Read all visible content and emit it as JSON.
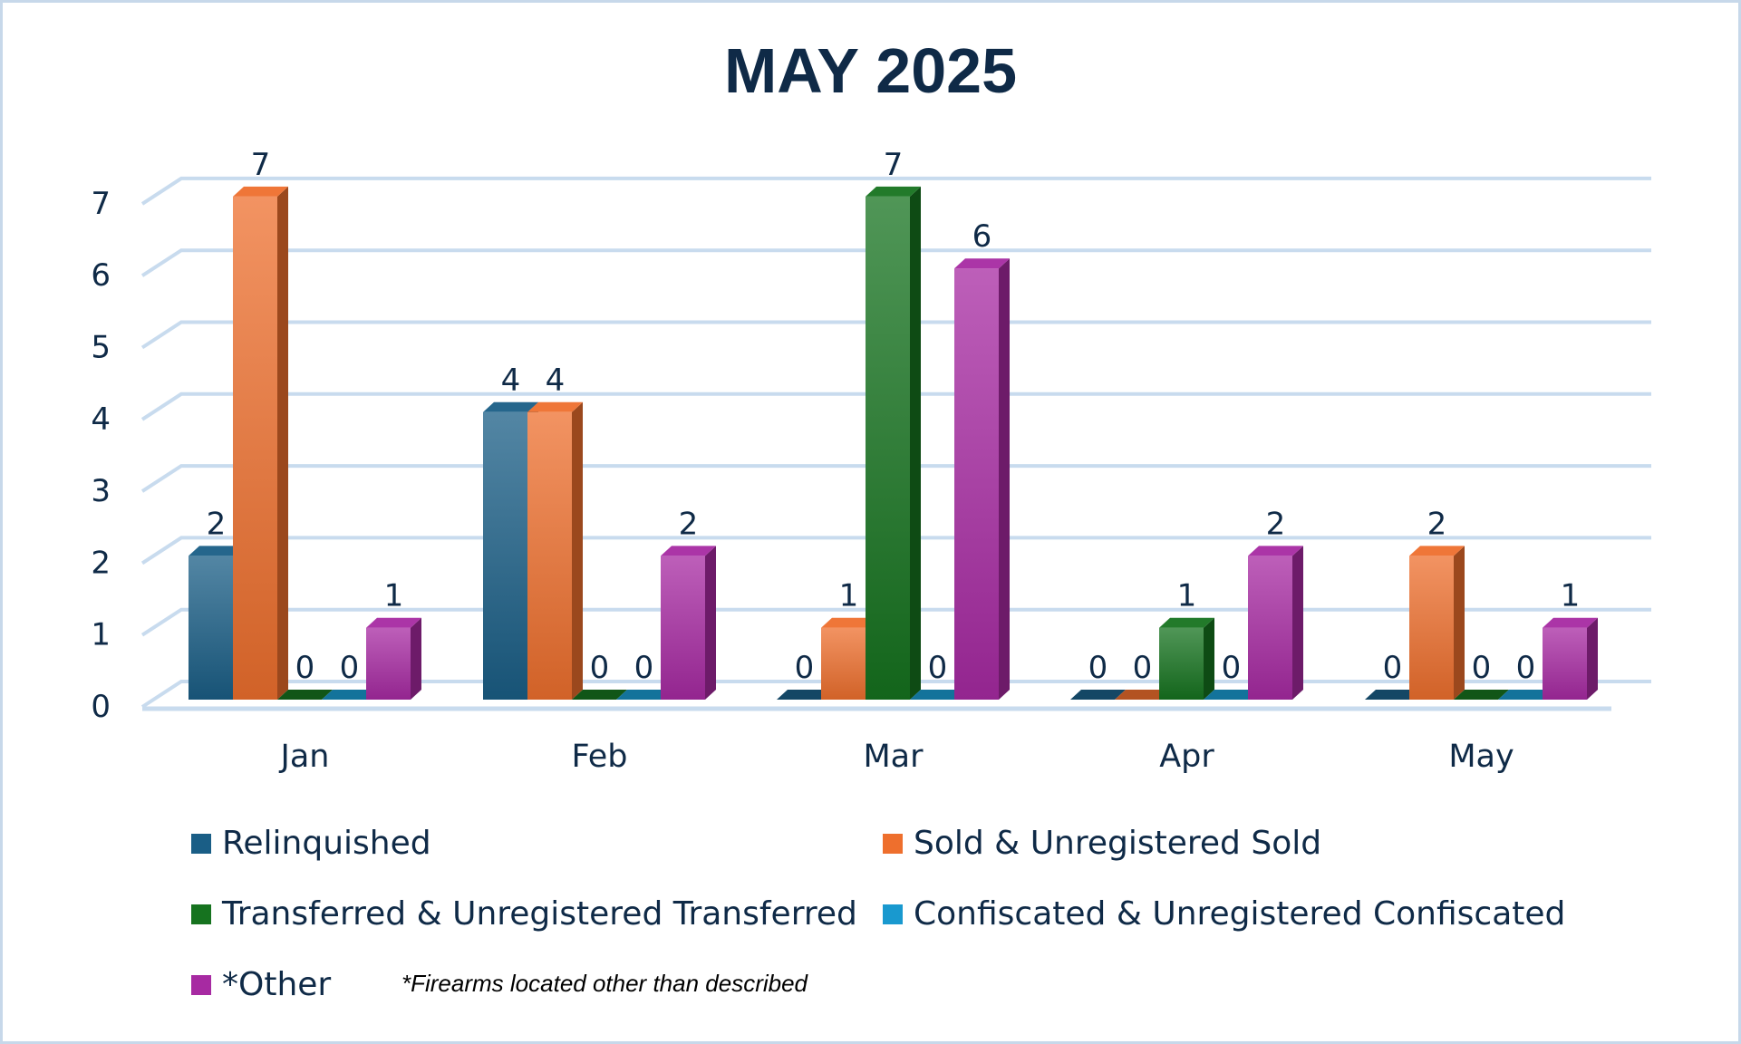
{
  "chart_data": {
    "type": "bar",
    "title": "MAY 2025",
    "categories": [
      "Jan",
      "Feb",
      "Mar",
      "Apr",
      "May"
    ],
    "series": [
      {
        "name": "Relinquished",
        "color": "#1a5e86",
        "values": [
          2,
          4,
          0,
          0,
          0
        ]
      },
      {
        "name": "Sold & Unregistered Sold",
        "color": "#ee6f2d",
        "values": [
          7,
          4,
          1,
          0,
          2
        ]
      },
      {
        "name": "Transferred & Unregistered Transferred",
        "color": "#16731f",
        "values": [
          0,
          0,
          7,
          1,
          0
        ]
      },
      {
        "name": "Confiscated & Unregistered Confiscated",
        "color": "#1999cf",
        "values": [
          0,
          0,
          0,
          0,
          0
        ]
      },
      {
        "name": "*Other",
        "color": "#a72aa2",
        "values": [
          1,
          2,
          6,
          2,
          1
        ]
      }
    ],
    "ylim": [
      0,
      7
    ],
    "yticks": [
      0,
      1,
      2,
      3,
      4,
      5,
      6,
      7
    ],
    "grid": true,
    "legend": "bottom",
    "footnote": "*Firearms located other than described"
  }
}
